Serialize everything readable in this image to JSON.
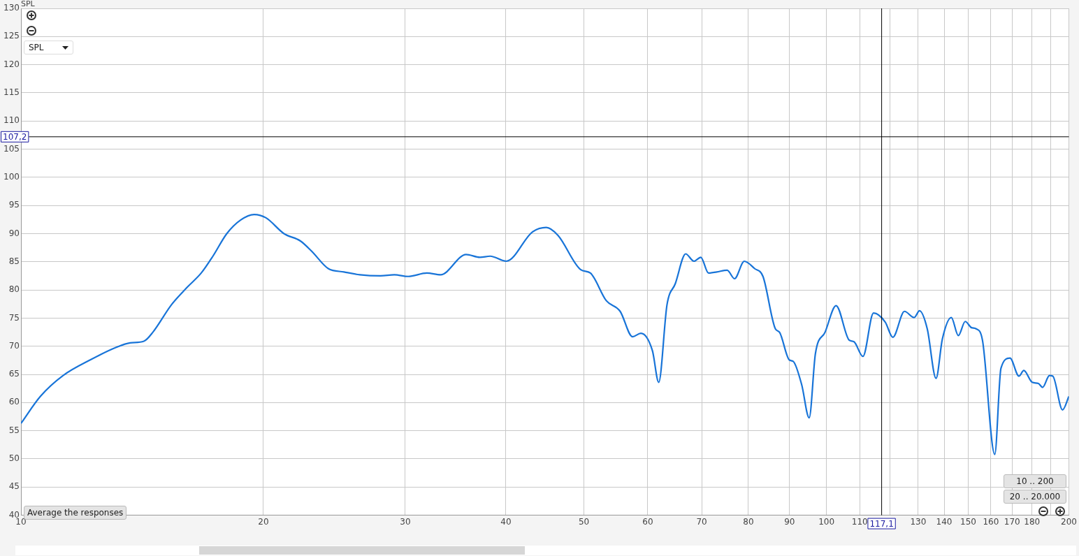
{
  "chart_data": {
    "type": "line",
    "ylabel": "SPL",
    "log": "x",
    "grid": true,
    "line_style": "solid",
    "marker": "none",
    "xlim": [
      10,
      200
    ],
    "ylim": [
      40,
      130
    ],
    "xticks": [
      10,
      20,
      30,
      40,
      50,
      60,
      70,
      80,
      90,
      100,
      110,
      {
        "value": 120,
        "label": null
      },
      130,
      140,
      150,
      160,
      170,
      180,
      {
        "value": 190,
        "label": null
      },
      200
    ],
    "yticks": [
      40,
      45,
      50,
      55,
      60,
      65,
      70,
      75,
      80,
      85,
      90,
      95,
      100,
      105,
      110,
      115,
      120,
      125,
      130
    ],
    "ref_lines": [
      {
        "axis": "x",
        "value": 117.1,
        "label": "117,1",
        "color": "#000000"
      },
      {
        "axis": "y",
        "value": 107.2,
        "label": "107,2",
        "color": "#000000"
      }
    ],
    "annotations": [
      "SPL",
      "Average the responses",
      "10 .. 200",
      "20 .. 20.000"
    ],
    "series": [
      {
        "color": "#1874d8",
        "x": [
          10,
          10.57,
          11.28,
          12.2,
          13.13,
          13.66,
          14.21,
          14.58,
          15.38,
          16.09,
          16.74,
          17.31,
          18.01,
          18.73,
          19.48,
          20.15,
          21.21,
          22.23,
          22.95,
          24.07,
          25.18,
          26.35,
          27.95,
          29.08,
          30.25,
          31.91,
          33.19,
          35.7,
          37.14,
          38.24,
          40.04,
          43.15,
          44.89,
          46.42,
          49.55,
          50.93,
          53.29,
          55.45,
          57.44,
          58.84,
          60.81,
          61.91,
          63.4,
          64.91,
          66.88,
          68.48,
          69.83,
          71.38,
          73.09,
          75.3,
          76.91,
          79.07,
          81.44,
          83.41,
          86.42,
          87.45,
          89.9,
          90.97,
          93.16,
          95.19,
          96.9,
          99.61,
          102.8,
          106.7,
          108.2,
          111,
          114.4,
          118.3,
          120.9,
          125,
          128.5,
          130.5,
          133.4,
          136.8,
          139.3,
          142.9,
          145.8,
          148.7,
          151.4,
          153.4,
          156.2,
          161.8,
          164.7,
          169,
          173.4,
          175.8,
          180.1,
          183.3,
          185.5,
          189.2,
          191,
          196.4,
          200
        ],
        "values": [
          56.3,
          61.1,
          64.8,
          67.6,
          69.8,
          70.6,
          70.9,
          72.5,
          77.4,
          80.5,
          83,
          86,
          90,
          92.4,
          93.4,
          92.8,
          90,
          88.7,
          86.9,
          83.8,
          83.2,
          82.7,
          82.5,
          82.7,
          82.4,
          83,
          82.7,
          86.3,
          85.8,
          86,
          85.1,
          90.3,
          91.1,
          89.7,
          83.6,
          83,
          78.1,
          76.2,
          71.7,
          72.3,
          69.2,
          63.6,
          77.4,
          81.1,
          86.4,
          85.1,
          85.8,
          83,
          83.2,
          83.5,
          82,
          85.1,
          83.8,
          82.4,
          73.1,
          72.5,
          67.6,
          67.3,
          63.2,
          57.3,
          68.7,
          72.5,
          77.2,
          71.1,
          70.8,
          68.2,
          75.9,
          74.3,
          71.6,
          76.2,
          75.1,
          76.3,
          73.1,
          64.3,
          71.3,
          75.1,
          71.9,
          74.4,
          73.3,
          73.1,
          71.1,
          50.8,
          66.1,
          67.9,
          64.7,
          65.7,
          63.6,
          63.4,
          62.7,
          64.8,
          64.7,
          58.7,
          61.1
        ]
      }
    ]
  }
}
